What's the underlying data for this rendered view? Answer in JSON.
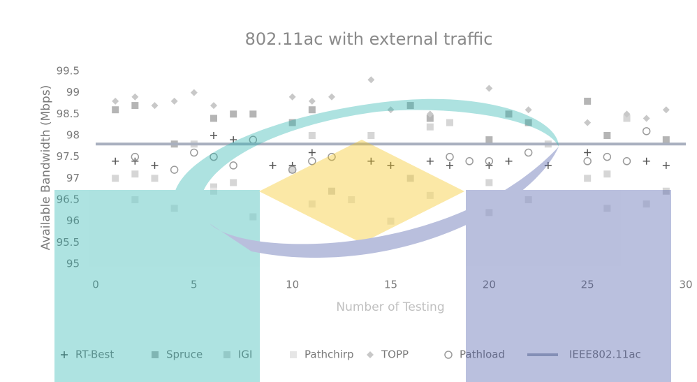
{
  "chart_data": {
    "type": "scatter",
    "title": "802.11ac with external traffic",
    "x_label": "Number of Testing",
    "y_label": "Available Bandwidth (Mbps)",
    "x": [
      1,
      2,
      3,
      4,
      5,
      6,
      7,
      8,
      9,
      10,
      11,
      12,
      13,
      14,
      15,
      16,
      17,
      18,
      19,
      20,
      21,
      22,
      23,
      24,
      25,
      26,
      27,
      28,
      29
    ],
    "xlim": [
      0,
      30
    ],
    "xticks": [
      0,
      5,
      10,
      15,
      20,
      25,
      30
    ],
    "ylim": [
      95,
      99.5
    ],
    "yticks": [
      95,
      95.5,
      96,
      96.5,
      97,
      97.5,
      98,
      98.5,
      99,
      99.5
    ],
    "grid": false,
    "legend": "bottom",
    "series": [
      {
        "name": "RT-Best",
        "color": "#555555",
        "marker": "plus",
        "values": [
          97.4,
          97.4,
          97.3,
          null,
          null,
          98.0,
          97.9,
          null,
          97.3,
          97.3,
          97.6,
          null,
          null,
          97.4,
          97.3,
          null,
          97.4,
          97.3,
          null,
          97.3,
          97.4,
          null,
          97.3,
          null,
          97.6,
          null,
          null,
          97.4,
          97.3
        ]
      },
      {
        "name": "Spruce",
        "color": "#b5b5b5",
        "marker": "square",
        "values": [
          98.6,
          98.7,
          null,
          97.8,
          null,
          98.4,
          98.5,
          98.5,
          null,
          98.3,
          98.6,
          null,
          null,
          null,
          null,
          98.7,
          98.4,
          null,
          null,
          97.9,
          98.5,
          98.3,
          null,
          null,
          98.8,
          98.0,
          null,
          null,
          97.9
        ]
      },
      {
        "name": "IGI",
        "color": "#d6d6d6",
        "marker": "square",
        "values": [
          97.0,
          97.1,
          97.0,
          null,
          97.8,
          96.8,
          96.9,
          null,
          null,
          97.2,
          98.0,
          96.7,
          null,
          98.0,
          null,
          97.0,
          98.2,
          98.3,
          null,
          96.9,
          null,
          null,
          97.8,
          null,
          97.0,
          97.1,
          98.4,
          null,
          96.7
        ]
      },
      {
        "name": "Pathchirp",
        "color": "#e6e6e6",
        "marker": "square",
        "values": [
          null,
          96.5,
          null,
          96.3,
          null,
          96.7,
          null,
          96.1,
          null,
          null,
          96.4,
          null,
          96.5,
          null,
          96.0,
          null,
          96.6,
          null,
          null,
          96.2,
          null,
          96.5,
          null,
          null,
          null,
          96.3,
          null,
          96.4,
          null
        ]
      },
      {
        "name": "TOPP",
        "color": "#c8c8c8",
        "marker": "diamond",
        "values": [
          98.8,
          98.9,
          98.7,
          98.8,
          99.0,
          98.7,
          null,
          null,
          null,
          98.9,
          98.8,
          98.9,
          null,
          99.3,
          98.6,
          null,
          98.5,
          null,
          null,
          99.1,
          null,
          98.6,
          null,
          null,
          98.3,
          null,
          98.5,
          98.4,
          98.6
        ]
      },
      {
        "name": "Pathload",
        "color": "#9a9a9a",
        "marker": "circle",
        "values": [
          null,
          97.5,
          null,
          97.2,
          97.6,
          97.5,
          97.3,
          97.9,
          null,
          97.2,
          97.4,
          97.5,
          null,
          null,
          null,
          null,
          null,
          97.5,
          97.4,
          97.4,
          null,
          97.6,
          null,
          null,
          97.4,
          97.5,
          97.4,
          98.1,
          null
        ]
      },
      {
        "name": "IEEE802.11ac",
        "color": "#a9b0bf",
        "marker": "line",
        "x": [
          0,
          30
        ],
        "values": [
          97.8,
          97.8
        ]
      }
    ]
  }
}
